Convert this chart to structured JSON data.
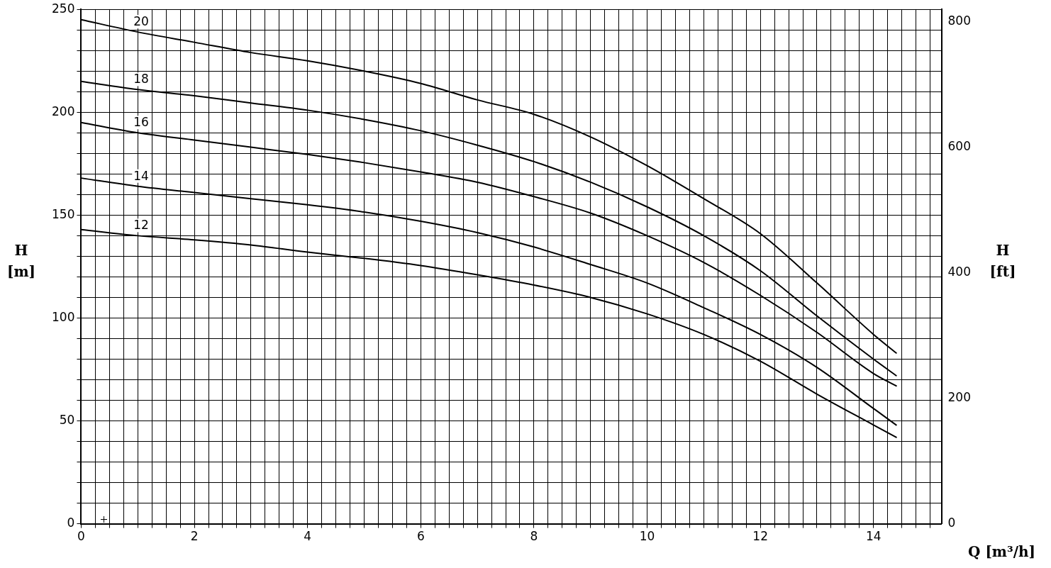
{
  "chart_data": {
    "type": "line",
    "xlabel": "Q [m³/h]",
    "ylabel": "H [m]",
    "y2label": "H [ft]",
    "x": [
      0,
      1,
      2,
      3,
      4,
      5,
      6,
      7,
      8,
      9,
      10,
      11,
      12,
      13,
      14,
      14.4
    ],
    "series": [
      {
        "name": "20",
        "color": "#000000",
        "values": [
          245,
          239,
          234,
          229,
          225,
          220,
          214,
          206,
          199,
          188,
          174,
          158,
          141,
          117,
          92,
          83
        ]
      },
      {
        "name": "18",
        "color": "#000000",
        "values": [
          215,
          211,
          208,
          204.5,
          201,
          196.5,
          191,
          184,
          176,
          166,
          154,
          140,
          123,
          101,
          80,
          72
        ]
      },
      {
        "name": "16",
        "color": "#000000",
        "values": [
          195,
          190,
          186.5,
          183,
          179.5,
          175.5,
          171,
          166,
          159,
          151,
          140,
          127,
          111,
          93,
          73,
          67
        ]
      },
      {
        "name": "14",
        "color": "#000000",
        "values": [
          168,
          164,
          161,
          158,
          155,
          151.5,
          147,
          141.5,
          134.5,
          126,
          117,
          105,
          92,
          76,
          56,
          48
        ]
      },
      {
        "name": "12",
        "color": "#000000",
        "values": [
          143,
          140,
          138,
          135.5,
          132,
          129,
          125.5,
          121,
          116,
          110,
          102,
          92,
          79,
          63,
          48,
          42
        ]
      }
    ],
    "xlim": [
      0,
      15.2
    ],
    "xticks": [
      0,
      {
        "value": 0.25,
        "label": null
      },
      {
        "value": 0.5,
        "label": null
      },
      {
        "value": 0.75,
        "label": null
      },
      {
        "value": 1,
        "label": null
      },
      {
        "value": 1.25,
        "label": null
      },
      {
        "value": 1.5,
        "label": null
      },
      {
        "value": 1.75,
        "label": null
      },
      2,
      {
        "value": 2.25,
        "label": null
      },
      {
        "value": 2.5,
        "label": null
      },
      {
        "value": 2.75,
        "label": null
      },
      {
        "value": 3,
        "label": null
      },
      {
        "value": 3.25,
        "label": null
      },
      {
        "value": 3.5,
        "label": null
      },
      {
        "value": 3.75,
        "label": null
      },
      4,
      {
        "value": 4.25,
        "label": null
      },
      {
        "value": 4.5,
        "label": null
      },
      {
        "value": 4.75,
        "label": null
      },
      {
        "value": 5,
        "label": null
      },
      {
        "value": 5.25,
        "label": null
      },
      {
        "value": 5.5,
        "label": null
      },
      {
        "value": 5.75,
        "label": null
      },
      6,
      {
        "value": 6.25,
        "label": null
      },
      {
        "value": 6.5,
        "label": null
      },
      {
        "value": 6.75,
        "label": null
      },
      {
        "value": 7,
        "label": null
      },
      {
        "value": 7.25,
        "label": null
      },
      {
        "value": 7.5,
        "label": null
      },
      {
        "value": 7.75,
        "label": null
      },
      8,
      {
        "value": 8.25,
        "label": null
      },
      {
        "value": 8.5,
        "label": null
      },
      {
        "value": 8.75,
        "label": null
      },
      {
        "value": 9,
        "label": null
      },
      {
        "value": 9.25,
        "label": null
      },
      {
        "value": 9.5,
        "label": null
      },
      {
        "value": 9.75,
        "label": null
      },
      10,
      {
        "value": 10.25,
        "label": null
      },
      {
        "value": 10.5,
        "label": null
      },
      {
        "value": 10.75,
        "label": null
      },
      {
        "value": 11,
        "label": null
      },
      {
        "value": 11.25,
        "label": null
      },
      {
        "value": 11.5,
        "label": null
      },
      {
        "value": 11.75,
        "label": null
      },
      12,
      {
        "value": 12.25,
        "label": null
      },
      {
        "value": 12.5,
        "label": null
      },
      {
        "value": 12.75,
        "label": null
      },
      {
        "value": 13,
        "label": null
      },
      {
        "value": 13.25,
        "label": null
      },
      {
        "value": 13.5,
        "label": null
      },
      {
        "value": 13.75,
        "label": null
      },
      14,
      {
        "value": 14.25,
        "label": null
      },
      {
        "value": 14.5,
        "label": null
      },
      {
        "value": 14.75,
        "label": null
      },
      {
        "value": 15,
        "label": null
      }
    ],
    "ylim": [
      0,
      250
    ],
    "yticks": [
      0,
      {
        "value": 10,
        "label": null
      },
      {
        "value": 20,
        "label": null
      },
      {
        "value": 30,
        "label": null
      },
      {
        "value": 40,
        "label": null
      },
      50,
      {
        "value": 60,
        "label": null
      },
      {
        "value": 70,
        "label": null
      },
      {
        "value": 80,
        "label": null
      },
      {
        "value": 90,
        "label": null
      },
      100,
      {
        "value": 110,
        "label": null
      },
      {
        "value": 120,
        "label": null
      },
      {
        "value": 130,
        "label": null
      },
      {
        "value": 140,
        "label": null
      },
      150,
      {
        "value": 160,
        "label": null
      },
      {
        "value": 170,
        "label": null
      },
      {
        "value": 180,
        "label": null
      },
      {
        "value": 190,
        "label": null
      },
      200,
      {
        "value": 210,
        "label": null
      },
      {
        "value": 220,
        "label": null
      },
      {
        "value": 230,
        "label": null
      },
      {
        "value": 240,
        "label": null
      },
      250
    ],
    "y2lim": [
      0,
      820.2
    ],
    "y2ticks": [
      0,
      200,
      400,
      600,
      800
    ],
    "grid": true,
    "legend": false,
    "marker": "none",
    "line_style": "solid"
  }
}
